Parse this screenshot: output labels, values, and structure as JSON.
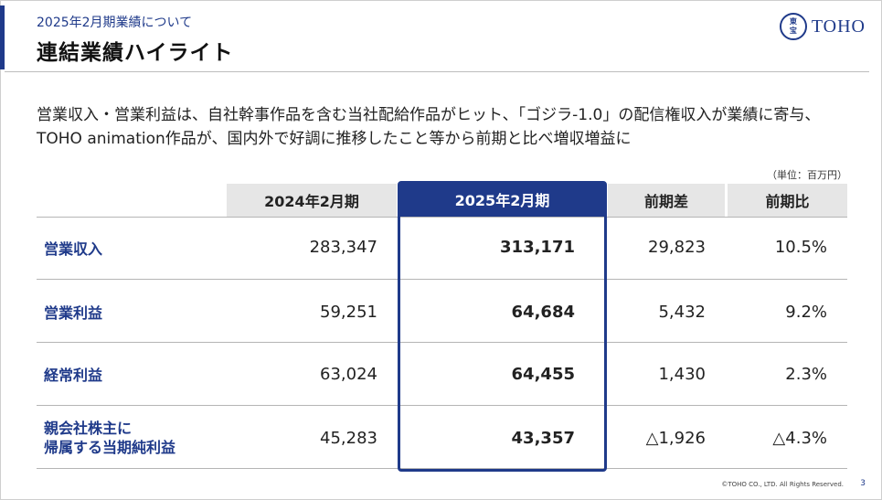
{
  "header": {
    "subtitle": "2025年2月期業績について",
    "title": "連結業績ハイライト",
    "logo_mark_top": "東",
    "logo_mark_bottom": "宝",
    "logo_text": "TOHO",
    "brand_color": "#1f3a8a"
  },
  "lead": {
    "line1": "営業収入・営業利益は、自社幹事作品を含む当社配給作品がヒット、「ゴジラ-1.0」の配信権収入が業績に寄与、",
    "line2": "TOHO animation作品が、国内外で好調に推移したこと等から前期と比べ増収増益に"
  },
  "table": {
    "unit": "（単位：百万円）",
    "columns": [
      "2024年2月期",
      "2025年2月期",
      "前期差",
      "前期比"
    ],
    "rows": [
      {
        "label": "営業収入",
        "prev": "283,347",
        "curr": "313,171",
        "diff": "29,823",
        "ratio": "10.5%"
      },
      {
        "label": "営業利益",
        "prev": "59,251",
        "curr": "64,684",
        "diff": "5,432",
        "ratio": "9.2%"
      },
      {
        "label": "経常利益",
        "prev": "63,024",
        "curr": "64,455",
        "diff": "1,430",
        "ratio": "2.3%"
      },
      {
        "label_line1": "親会社株主に",
        "label_line2": "帰属する当期純利益",
        "prev": "45,283",
        "curr": "43,357",
        "diff": "△1,926",
        "ratio": "△4.3%"
      }
    ]
  },
  "footer": {
    "copyright": "©TOHO CO., LTD. All Rights Reserved.",
    "page": "3"
  }
}
